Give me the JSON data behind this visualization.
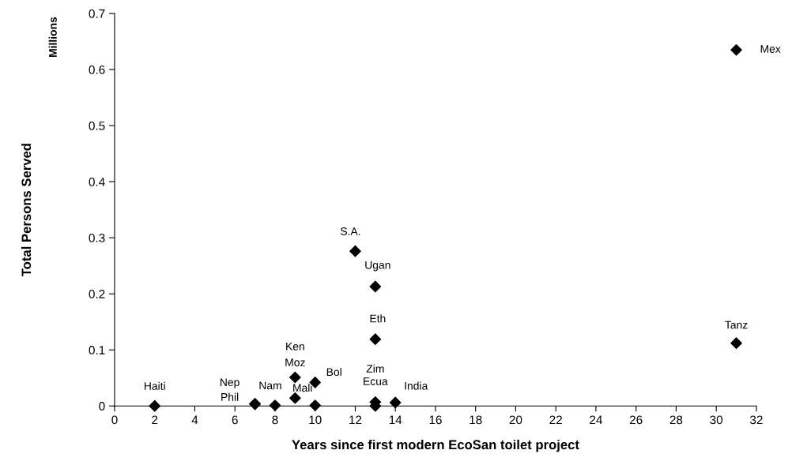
{
  "chart_data": {
    "type": "scatter",
    "xlabel": "Years since first modern EcoSan toilet project",
    "ylabel": "Total Persons Served",
    "annotations": [
      "Millions",
      {
        "text": "Haiti",
        "x": 2,
        "y": 0
      },
      {
        "text": "Nep",
        "x": 7,
        "y": 0.004
      },
      {
        "text": "Phil",
        "x": 7,
        "y": 0.003
      },
      {
        "text": "Nam",
        "x": 8,
        "y": 0.001
      },
      {
        "text": "Ken",
        "x": 9,
        "y": 0.051
      },
      {
        "text": "Moz",
        "x": 9,
        "y": 0.014
      },
      {
        "text": "Bol",
        "x": 10,
        "y": 0.042
      },
      {
        "text": "Mali",
        "x": 10,
        "y": 0.001
      },
      {
        "text": "S.A.",
        "x": 12,
        "y": 0.276
      },
      {
        "text": "Ugan",
        "x": 13,
        "y": 0.213
      },
      {
        "text": "Eth",
        "x": 13,
        "y": 0.119
      },
      {
        "text": "Zim",
        "x": 13,
        "y": 0.007
      },
      {
        "text": "Ecua",
        "x": 13,
        "y": 0
      },
      {
        "text": "India",
        "x": 14,
        "y": 0.006
      },
      {
        "text": "Tanz",
        "x": 31,
        "y": 0.112
      },
      {
        "text": "Mex",
        "x": 31,
        "y": 0.635
      }
    ],
    "x": [
      2,
      7,
      7,
      8,
      9,
      9,
      10,
      10,
      12,
      13,
      13,
      13,
      13,
      14,
      31,
      31
    ],
    "values": [
      0,
      0.004,
      0.003,
      0.001,
      0.051,
      0.014,
      0.042,
      0.001,
      0.276,
      0.213,
      0.119,
      0.007,
      0,
      0.006,
      0.112,
      0.635
    ],
    "color": "#000000",
    "marker": "diamond",
    "xlim": [
      0,
      32
    ],
    "xticks": [
      0,
      2,
      4,
      6,
      8,
      10,
      12,
      14,
      16,
      18,
      20,
      22,
      24,
      26,
      28,
      30,
      32
    ],
    "ylim": [
      0,
      0.7
    ],
    "yticks": [
      {
        "value": 0,
        "label": "0"
      },
      0.1,
      0.2,
      0.3,
      0.4,
      0.5,
      0.6,
      0.7
    ],
    "grid": false,
    "legend": false
  }
}
